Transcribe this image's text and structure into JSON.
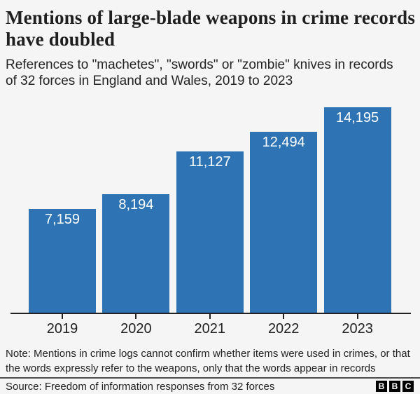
{
  "header": {
    "title": "Mentions of large-blade weapons in crime records have doubled",
    "subtitle": "References to \"machetes\", \"swords\" or \"zombie\" knives in records of 32 forces in England and Wales, 2019 to 2023"
  },
  "chart_data": {
    "type": "bar",
    "categories": [
      "2019",
      "2020",
      "2021",
      "2022",
      "2023"
    ],
    "values": [
      7159,
      8194,
      11127,
      12494,
      14195
    ],
    "value_labels": [
      "7,159",
      "8,194",
      "11,127",
      "12,494",
      "14,195"
    ],
    "title": "Mentions of large-blade weapons in crime records have doubled",
    "xlabel": "",
    "ylabel": "",
    "ylim": [
      0,
      14700
    ],
    "grid": false,
    "legend": false,
    "bar_color": "#2e74b4",
    "bar_label_color": "#ffffff",
    "axis_color": "#222222",
    "background_color": "#f5f5f5"
  },
  "footer": {
    "note": "Note: Mentions in crime logs cannot confirm whether items were used in crimes, or that the words expressly refer to the weapons, only that the words appear in records",
    "source": "Source: Freedom of information responses from 32 forces",
    "logo_letters": [
      "B",
      "B",
      "C"
    ]
  }
}
